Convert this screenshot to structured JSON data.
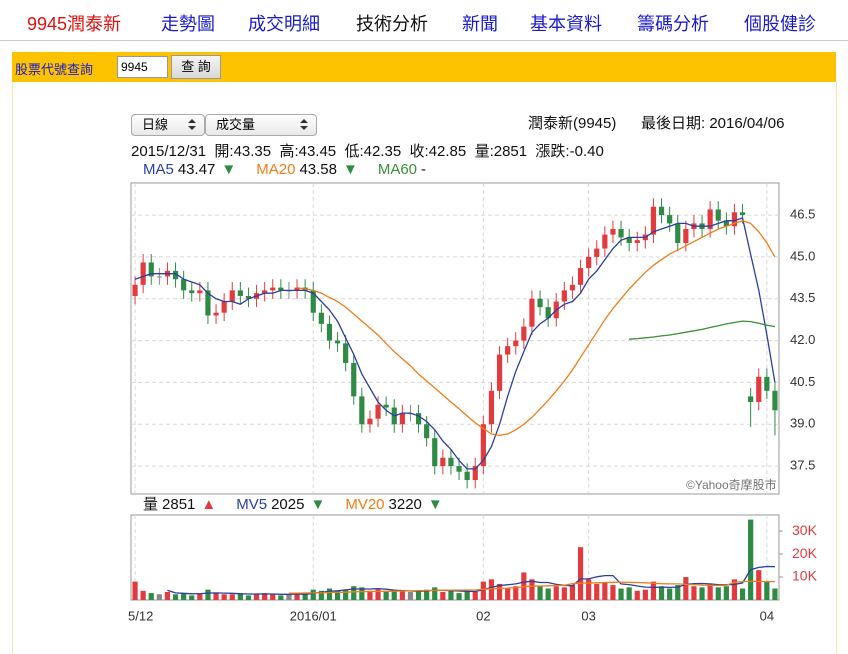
{
  "nav": {
    "stock": "9945潤泰新",
    "items": [
      "走勢圖",
      "成交明細",
      "技術分析",
      "新聞",
      "基本資料",
      "籌碼分析",
      "個股健診"
    ],
    "active": 2
  },
  "search": {
    "label": "股票代號查詢",
    "input": "9945",
    "button": "查 詢"
  },
  "selects": [
    "日線",
    "成交量"
  ],
  "header": {
    "name": "潤泰新(9945)",
    "last_date": "最後日期: 2016/04/06",
    "quote": "2015/12/31  開:43.35  高:43.45  低:42.35  收:42.85  量:2851  漲跌:-0.40"
  },
  "watermark": "©Yahoo奇摩股市",
  "chart_data": [
    {
      "type": "candlestick",
      "up_color": "#e23b3f",
      "down_color": "#2f8a45",
      "flat_color": "#888888",
      "ylim": [
        36.5,
        47.65
      ],
      "yticks": [
        {
          "value": 46.5,
          "label": "46.5"
        },
        {
          "value": 45,
          "label": "45.0"
        },
        {
          "value": 43.5,
          "label": "43.5"
        },
        {
          "value": 42,
          "label": "42.0"
        },
        {
          "value": 40.5,
          "label": "40.5"
        },
        {
          "value": 39,
          "label": "39.0"
        },
        {
          "value": 37.5,
          "label": "37.5"
        }
      ],
      "grid": true,
      "open": [
        43.6,
        44.0,
        44.8,
        44.3,
        44.3,
        44.5,
        44.2,
        43.8,
        43.7,
        43.8,
        42.9,
        43.0,
        43.4,
        43.8,
        43.6,
        43.5,
        43.7,
        43.8,
        43.9,
        43.8,
        43.8,
        43.9,
        43.8,
        43.0,
        42.6,
        42.0,
        41.9,
        41.2,
        40.0,
        39.0,
        39.2,
        39.7,
        39.6,
        39.0,
        39.4,
        39.4,
        39.0,
        38.5,
        37.5,
        37.8,
        37.5,
        37.3,
        37.0,
        37.5,
        39.0,
        40.2,
        41.5,
        41.8,
        42.0,
        42.5,
        43.5,
        43.2,
        42.8,
        43.4,
        43.8,
        44.0,
        44.6,
        45.0,
        45.3,
        45.8,
        46.0,
        45.7,
        45.5,
        45.6,
        45.8,
        46.8,
        46.5,
        46.2,
        45.5,
        46.0,
        46.2,
        46.0,
        46.7,
        46.3,
        46.1,
        46.6,
        40.0,
        39.8,
        40.7,
        40.2
      ],
      "high": [
        44.3,
        45.1,
        45.1,
        44.6,
        44.8,
        44.8,
        44.5,
        44.1,
        44.1,
        44.1,
        43.3,
        43.7,
        44.1,
        44.1,
        43.9,
        44.0,
        44.1,
        44.2,
        44.2,
        44.1,
        44.2,
        44.2,
        44.1,
        43.3,
        42.9,
        42.3,
        42.2,
        41.5,
        40.3,
        39.5,
        40.0,
        40.0,
        39.9,
        39.7,
        39.7,
        39.7,
        39.3,
        38.8,
        38.1,
        38.1,
        37.8,
        37.6,
        37.8,
        39.3,
        40.5,
        41.8,
        42.1,
        42.3,
        42.8,
        43.8,
        43.8,
        43.5,
        43.7,
        44.1,
        44.3,
        44.9,
        45.3,
        45.6,
        46.1,
        46.3,
        46.3,
        46.0,
        45.9,
        46.1,
        47.1,
        47.1,
        46.8,
        46.5,
        46.3,
        46.5,
        46.5,
        47.0,
        47.0,
        46.6,
        46.9,
        46.9,
        40.3,
        41.0,
        41.0,
        40.5
      ],
      "low": [
        43.3,
        43.7,
        44.0,
        44.0,
        44.0,
        43.9,
        43.5,
        43.4,
        43.4,
        42.6,
        42.6,
        42.7,
        43.1,
        43.3,
        43.2,
        43.2,
        43.4,
        43.5,
        43.5,
        43.5,
        43.5,
        43.5,
        42.7,
        42.3,
        41.7,
        41.6,
        40.9,
        39.7,
        38.7,
        38.7,
        38.9,
        39.3,
        38.7,
        38.7,
        39.1,
        38.7,
        38.2,
        37.2,
        37.2,
        37.2,
        37.0,
        36.7,
        36.7,
        37.2,
        38.7,
        39.9,
        41.2,
        41.5,
        41.7,
        42.2,
        42.9,
        42.5,
        42.5,
        43.1,
        43.5,
        43.7,
        44.3,
        44.7,
        45.0,
        45.5,
        45.4,
        45.2,
        45.2,
        45.3,
        45.5,
        46.2,
        45.9,
        45.2,
        45.2,
        45.7,
        45.7,
        45.7,
        46.0,
        45.8,
        45.8,
        46.2,
        38.9,
        39.5,
        39.9,
        38.6
      ],
      "close": [
        44.0,
        44.8,
        44.3,
        44.3,
        44.5,
        44.2,
        43.8,
        43.7,
        43.8,
        42.9,
        43.0,
        43.4,
        43.8,
        43.6,
        43.5,
        43.7,
        43.8,
        43.9,
        43.8,
        43.8,
        43.9,
        43.8,
        43.0,
        42.6,
        42.0,
        41.9,
        41.2,
        40.0,
        39.0,
        39.2,
        39.7,
        39.6,
        39.0,
        39.4,
        39.4,
        39.0,
        38.5,
        37.5,
        37.8,
        37.5,
        37.3,
        37.0,
        37.5,
        39.0,
        40.2,
        41.5,
        41.8,
        42.0,
        42.5,
        43.5,
        43.2,
        42.8,
        43.4,
        43.8,
        44.0,
        44.6,
        45.0,
        45.3,
        45.8,
        46.0,
        45.7,
        45.5,
        45.6,
        45.8,
        46.8,
        46.5,
        46.2,
        45.5,
        46.0,
        46.2,
        46.0,
        46.7,
        46.3,
        46.1,
        46.6,
        46.5,
        39.8,
        40.7,
        40.2,
        39.5
      ],
      "series": [
        {
          "name": "MA5",
          "last": 43.47,
          "trend": "▼",
          "color": "#2b3f9e",
          "trend_color": "#2f8a45",
          "values": [
            44.2,
            44.3,
            44.4,
            44.4,
            44.4,
            44.4,
            44.2,
            44.1,
            44.0,
            43.7,
            43.5,
            43.4,
            43.4,
            43.3,
            43.5,
            43.6,
            43.7,
            43.7,
            43.8,
            43.8,
            43.8,
            43.8,
            43.7,
            43.4,
            43.1,
            42.7,
            42.1,
            41.5,
            40.8,
            40.3,
            39.8,
            39.5,
            39.3,
            39.4,
            39.4,
            39.3,
            39.1,
            38.8,
            38.4,
            38.1,
            37.7,
            37.4,
            37.4,
            37.7,
            38.2,
            39.0,
            40.0,
            40.9,
            41.6,
            42.3,
            42.6,
            42.8,
            43.1,
            43.3,
            43.4,
            43.7,
            44.2,
            44.5,
            44.9,
            45.3,
            45.6,
            45.7,
            45.7,
            45.7,
            45.9,
            46.0,
            46.1,
            46.2,
            46.2,
            46.1,
            46.1,
            46.1,
            46.2,
            46.3,
            46.3,
            46.4,
            45.1,
            43.8,
            42.2,
            40.5
          ]
        },
        {
          "name": "MA20",
          "last": 43.58,
          "trend": "▼",
          "color": "#f07d1a",
          "trend_color": "#2f8a45",
          "values": [
            null,
            null,
            null,
            null,
            null,
            null,
            null,
            null,
            null,
            null,
            null,
            null,
            null,
            null,
            null,
            null,
            null,
            null,
            null,
            null,
            43.9,
            43.85,
            43.8,
            43.7,
            43.55,
            43.4,
            43.2,
            42.95,
            42.7,
            42.45,
            42.2,
            41.9,
            41.6,
            41.35,
            41.1,
            40.8,
            40.55,
            40.3,
            40.05,
            39.8,
            39.55,
            39.3,
            39.05,
            38.85,
            38.65,
            38.6,
            38.65,
            38.8,
            39.0,
            39.25,
            39.55,
            39.85,
            40.2,
            40.55,
            40.95,
            41.4,
            41.85,
            42.3,
            42.75,
            43.15,
            43.5,
            43.85,
            44.15,
            44.45,
            44.7,
            44.9,
            45.1,
            45.25,
            45.4,
            45.55,
            45.7,
            45.85,
            46.0,
            46.1,
            46.2,
            46.3,
            46.2,
            45.9,
            45.5,
            45.0
          ]
        },
        {
          "name": "MA60",
          "last": "-",
          "color": "#3a8f3a",
          "values": [
            null,
            null,
            null,
            null,
            null,
            null,
            null,
            null,
            null,
            null,
            null,
            null,
            null,
            null,
            null,
            null,
            null,
            null,
            null,
            null,
            null,
            null,
            null,
            null,
            null,
            null,
            null,
            null,
            null,
            null,
            null,
            null,
            null,
            null,
            null,
            null,
            null,
            null,
            null,
            null,
            null,
            null,
            null,
            null,
            null,
            null,
            null,
            null,
            null,
            null,
            null,
            null,
            null,
            null,
            null,
            null,
            null,
            null,
            null,
            null,
            null,
            42.05,
            42.07,
            42.1,
            42.13,
            42.17,
            42.2,
            42.25,
            42.3,
            42.35,
            42.4,
            42.47,
            42.53,
            42.6,
            42.65,
            42.7,
            42.68,
            42.62,
            42.55,
            42.5
          ]
        }
      ]
    },
    {
      "type": "bar",
      "name": "量",
      "last": 2851,
      "trend": "▲",
      "trend_color": "#e23b3f",
      "categories": [
        "5/12",
        null,
        null,
        null,
        null,
        null,
        null,
        null,
        null,
        null,
        null,
        null,
        null,
        null,
        null,
        null,
        null,
        null,
        null,
        null,
        null,
        null,
        "2016/01",
        null,
        null,
        null,
        null,
        null,
        null,
        null,
        null,
        null,
        null,
        null,
        null,
        null,
        null,
        null,
        null,
        null,
        null,
        null,
        null,
        "02",
        null,
        null,
        null,
        null,
        null,
        null,
        null,
        null,
        null,
        null,
        null,
        null,
        "03",
        null,
        null,
        null,
        null,
        null,
        null,
        null,
        null,
        null,
        null,
        null,
        null,
        null,
        null,
        null,
        null,
        null,
        null,
        null,
        null,
        null,
        "04",
        null
      ],
      "ylim": [
        0,
        37000
      ],
      "yticks": [
        {
          "value": 10000,
          "label": "10K"
        },
        {
          "value": 20000,
          "label": "20K"
        },
        {
          "value": 30000,
          "label": "30K"
        }
      ],
      "tick_color": "#e23b3f",
      "values": [
        8000,
        4000,
        3000,
        2500,
        3500,
        2500,
        3000,
        2000,
        3000,
        4500,
        3000,
        2500,
        2500,
        3000,
        2000,
        2500,
        3000,
        2500,
        2000,
        2500,
        3000,
        2500,
        4500,
        4000,
        5000,
        4000,
        4500,
        6000,
        5500,
        4000,
        4500,
        3500,
        4000,
        4000,
        3500,
        4000,
        4500,
        5500,
        3500,
        4000,
        3000,
        4000,
        3500,
        8000,
        9000,
        7000,
        5000,
        6000,
        12000,
        9000,
        6000,
        5000,
        6000,
        5500,
        6500,
        23000,
        9000,
        7000,
        7500,
        6500,
        5000,
        5500,
        4000,
        4500,
        8000,
        6000,
        5000,
        6500,
        10000,
        6000,
        5500,
        7000,
        5500,
        6000,
        9000,
        5000,
        35000,
        13000,
        8000,
        5000
      ],
      "series": [
        {
          "name": "MV5",
          "last": 2025,
          "trend": "▼",
          "color": "#2b3f9e",
          "trend_color": "#2f8a45",
          "values": [
            null,
            null,
            null,
            null,
            4200,
            3100,
            2900,
            2700,
            2800,
            3000,
            3100,
            3000,
            2900,
            2700,
            2600,
            2600,
            2600,
            2600,
            2500,
            2500,
            2600,
            2500,
            2900,
            3300,
            3800,
            4000,
            4400,
            4800,
            4800,
            4800,
            4900,
            4700,
            4300,
            4100,
            3900,
            3800,
            3900,
            4300,
            4200,
            4100,
            3900,
            3800,
            3700,
            4500,
            5500,
            6300,
            6600,
            7000,
            7800,
            8200,
            7600,
            7600,
            6800,
            6400,
            6200,
            9200,
            9200,
            10100,
            10600,
            10600,
            7000,
            6700,
            6100,
            5600,
            5500,
            5600,
            5500,
            5600,
            6800,
            7100,
            7200,
            7000,
            6700,
            6600,
            6800,
            7400,
            13200,
            14200,
            14600,
            14500
          ]
        },
        {
          "name": "MV20",
          "last": 3220,
          "trend": "▼",
          "color": "#f07d1a",
          "trend_color": "#2f8a45",
          "values": [
            null,
            null,
            null,
            null,
            null,
            null,
            null,
            null,
            null,
            null,
            null,
            null,
            null,
            null,
            null,
            null,
            null,
            null,
            null,
            3000,
            3000,
            3050,
            3100,
            3150,
            3250,
            3300,
            3400,
            3550,
            3650,
            3700,
            3750,
            3800,
            3850,
            3900,
            3950,
            4050,
            4150,
            4200,
            4250,
            4300,
            4300,
            4350,
            4400,
            4600,
            4900,
            5100,
            5200,
            5400,
            5800,
            6000,
            6100,
            6200,
            6300,
            6400,
            7100,
            7300,
            7400,
            7500,
            7600,
            7700,
            7800,
            7700,
            7600,
            7500,
            7300,
            7100,
            7000,
            7000,
            6800,
            6700,
            6500,
            6400,
            6300,
            6400,
            7700,
            8000,
            8100,
            8100,
            8000,
            8000
          ]
        }
      ]
    }
  ]
}
